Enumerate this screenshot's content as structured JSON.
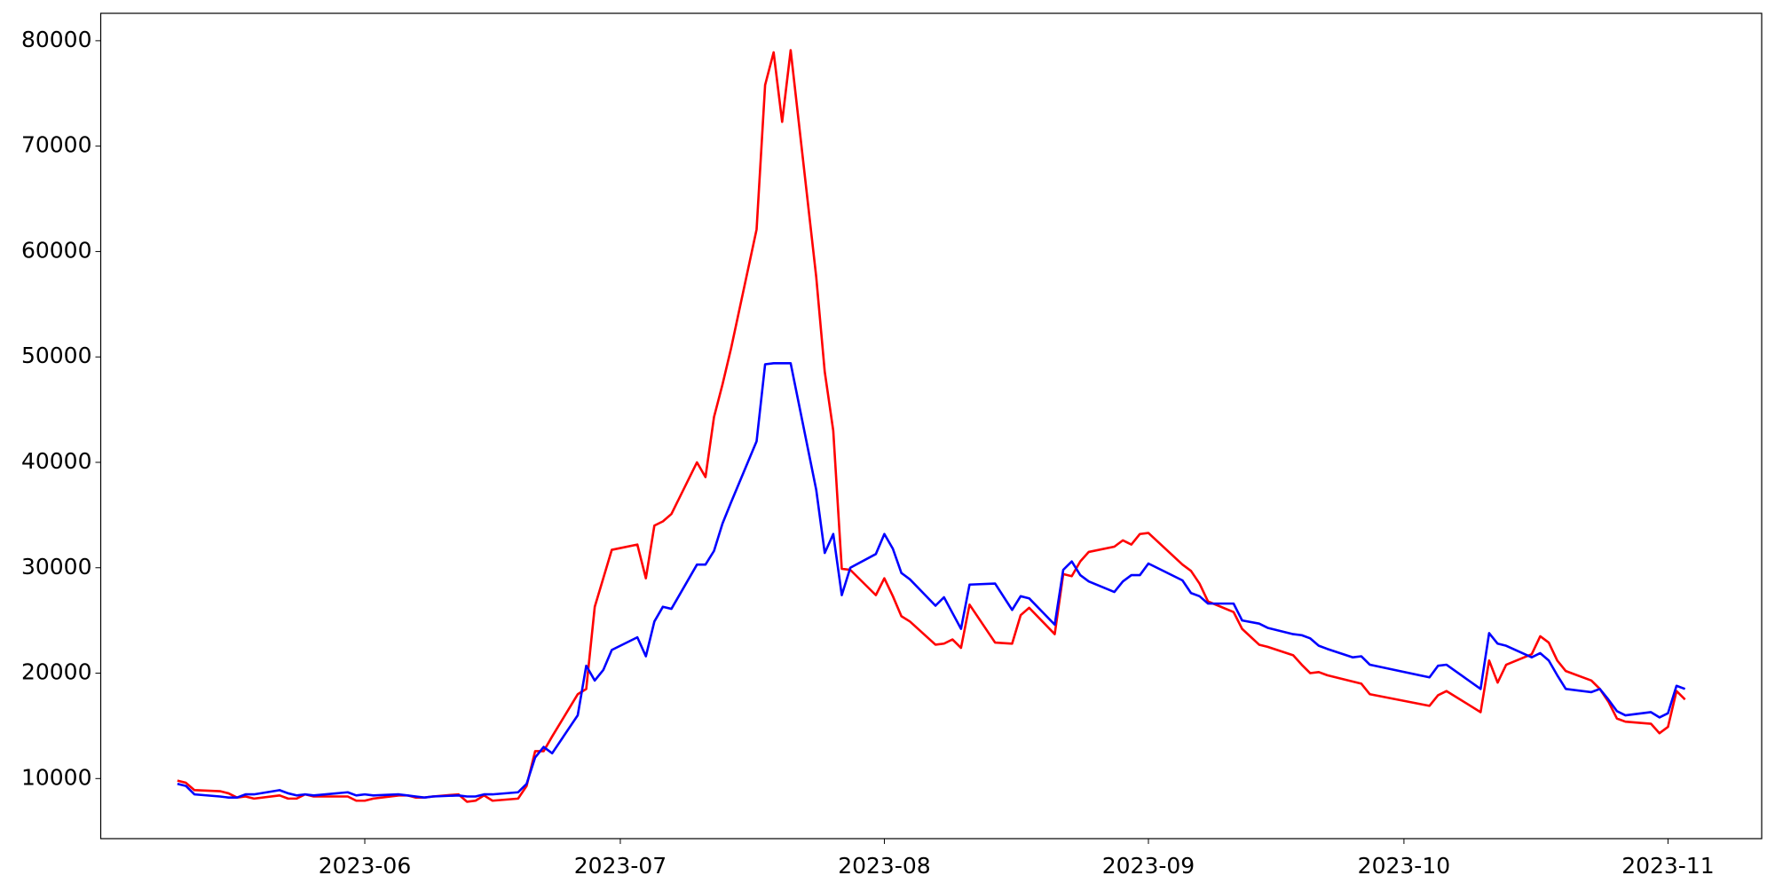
{
  "chart_data": {
    "type": "line",
    "x": [
      "2023-05-10",
      "2023-05-11",
      "2023-05-12",
      "2023-05-15",
      "2023-05-16",
      "2023-05-17",
      "2023-05-18",
      "2023-05-19",
      "2023-05-22",
      "2023-05-23",
      "2023-05-24",
      "2023-05-25",
      "2023-05-26",
      "2023-05-30",
      "2023-05-31",
      "2023-06-01",
      "2023-06-02",
      "2023-06-05",
      "2023-06-06",
      "2023-06-07",
      "2023-06-08",
      "2023-06-09",
      "2023-06-12",
      "2023-06-13",
      "2023-06-14",
      "2023-06-15",
      "2023-06-16",
      "2023-06-19",
      "2023-06-20",
      "2023-06-21",
      "2023-06-22",
      "2023-06-23",
      "2023-06-26",
      "2023-06-27",
      "2023-06-28",
      "2023-06-29",
      "2023-06-30",
      "2023-07-03",
      "2023-07-04",
      "2023-07-05",
      "2023-07-06",
      "2023-07-07",
      "2023-07-10",
      "2023-07-11",
      "2023-07-12",
      "2023-07-13",
      "2023-07-14",
      "2023-07-17",
      "2023-07-18",
      "2023-07-19",
      "2023-07-20",
      "2023-07-21",
      "2023-07-24",
      "2023-07-25",
      "2023-07-26",
      "2023-07-27",
      "2023-07-28",
      "2023-07-31",
      "2023-08-01",
      "2023-08-02",
      "2023-08-03",
      "2023-08-04",
      "2023-08-07",
      "2023-08-08",
      "2023-08-09",
      "2023-08-10",
      "2023-08-11",
      "2023-08-14",
      "2023-08-16",
      "2023-08-17",
      "2023-08-18",
      "2023-08-21",
      "2023-08-22",
      "2023-08-23",
      "2023-08-24",
      "2023-08-25",
      "2023-08-28",
      "2023-08-29",
      "2023-08-30",
      "2023-08-31",
      "2023-09-01",
      "2023-09-05",
      "2023-09-06",
      "2023-09-07",
      "2023-09-08",
      "2023-09-11",
      "2023-09-12",
      "2023-09-14",
      "2023-09-15",
      "2023-09-18",
      "2023-09-19",
      "2023-09-20",
      "2023-09-21",
      "2023-09-22",
      "2023-09-25",
      "2023-09-26",
      "2023-09-27",
      "2023-10-04",
      "2023-10-05",
      "2023-10-06",
      "2023-10-10",
      "2023-10-11",
      "2023-10-12",
      "2023-10-13",
      "2023-10-16",
      "2023-10-17",
      "2023-10-18",
      "2023-10-19",
      "2023-10-20",
      "2023-10-23",
      "2023-10-24",
      "2023-10-25",
      "2023-10-26",
      "2023-10-27",
      "2023-10-30",
      "2023-10-31",
      "2023-11-01",
      "2023-11-02",
      "2023-11-03"
    ],
    "series": [
      {
        "color": "red",
        "values": [
          9800,
          9600,
          8900,
          8800,
          8600,
          8200,
          8300,
          8100,
          8400,
          8100,
          8100,
          8500,
          8300,
          8300,
          7900,
          7900,
          8100,
          8400,
          8400,
          8200,
          8200,
          8300,
          8500,
          7800,
          7900,
          8400,
          7900,
          8100,
          9300,
          12600,
          12600,
          14000,
          18000,
          18500,
          26300,
          29000,
          31700,
          32200,
          29000,
          34000,
          34400,
          35100,
          40000,
          38600,
          44300,
          47400,
          50800,
          62100,
          75800,
          78900,
          72300,
          79100,
          57600,
          48600,
          43000,
          29900,
          29800,
          27400,
          29000,
          27300,
          25400,
          24900,
          22700,
          22800,
          23200,
          22400,
          26500,
          22900,
          22800,
          25500,
          26200,
          23700,
          29400,
          29200,
          30600,
          31500,
          32000,
          32600,
          32200,
          33200,
          33300,
          30300,
          29700,
          28500,
          26800,
          25800,
          24200,
          22700,
          22500,
          21700,
          20800,
          20000,
          20100,
          19800,
          19200,
          19000,
          18000,
          16900,
          17900,
          18300,
          16300,
          21200,
          19100,
          20800,
          21800,
          23500,
          22900,
          21200,
          20200,
          19300,
          18500,
          17300,
          15700,
          15400,
          15200,
          14300,
          14900,
          18300,
          17500
        ]
      },
      {
        "color": "blue",
        "values": [
          9500,
          9300,
          8500,
          8300,
          8200,
          8200,
          8500,
          8500,
          8900,
          8600,
          8400,
          8500,
          8400,
          8700,
          8400,
          8500,
          8400,
          8500,
          8400,
          8300,
          8200,
          8300,
          8400,
          8300,
          8300,
          8500,
          8500,
          8700,
          9500,
          12000,
          13000,
          12400,
          16000,
          20700,
          19300,
          20300,
          22200,
          23400,
          21600,
          24900,
          26300,
          26100,
          30300,
          30300,
          31600,
          34200,
          36200,
          42000,
          49300,
          49400,
          49400,
          49400,
          37400,
          31400,
          33200,
          27400,
          30000,
          31300,
          33200,
          31800,
          29500,
          28900,
          26400,
          27200,
          25700,
          24200,
          28400,
          28500,
          26000,
          27300,
          27100,
          24600,
          29800,
          30600,
          29300,
          28700,
          27700,
          28700,
          29300,
          29300,
          30400,
          28800,
          27600,
          27300,
          26600,
          26600,
          25000,
          24700,
          24300,
          23700,
          23600,
          23300,
          22600,
          22300,
          21500,
          21600,
          20800,
          19600,
          20700,
          20800,
          18500,
          23800,
          22800,
          22600,
          21500,
          21900,
          21200,
          19800,
          18500,
          18200,
          18500,
          17500,
          16400,
          16000,
          16300,
          15800,
          16200,
          18800,
          18500
        ]
      }
    ],
    "xlim": [
      "2023-05-01",
      "2023-11-12"
    ],
    "xticks": [
      {
        "value": "2023-06-01",
        "label": "2023-06"
      },
      {
        "value": "2023-07-01",
        "label": "2023-07"
      },
      {
        "value": "2023-08-01",
        "label": "2023-08"
      },
      {
        "value": "2023-09-01",
        "label": "2023-09"
      },
      {
        "value": "2023-10-01",
        "label": "2023-10"
      },
      {
        "value": "2023-11-01",
        "label": "2023-11"
      }
    ],
    "ylim": [
      4300,
      82600
    ],
    "yticks": [
      10000,
      20000,
      30000,
      40000,
      50000,
      60000,
      70000,
      80000
    ],
    "grid": false
  }
}
